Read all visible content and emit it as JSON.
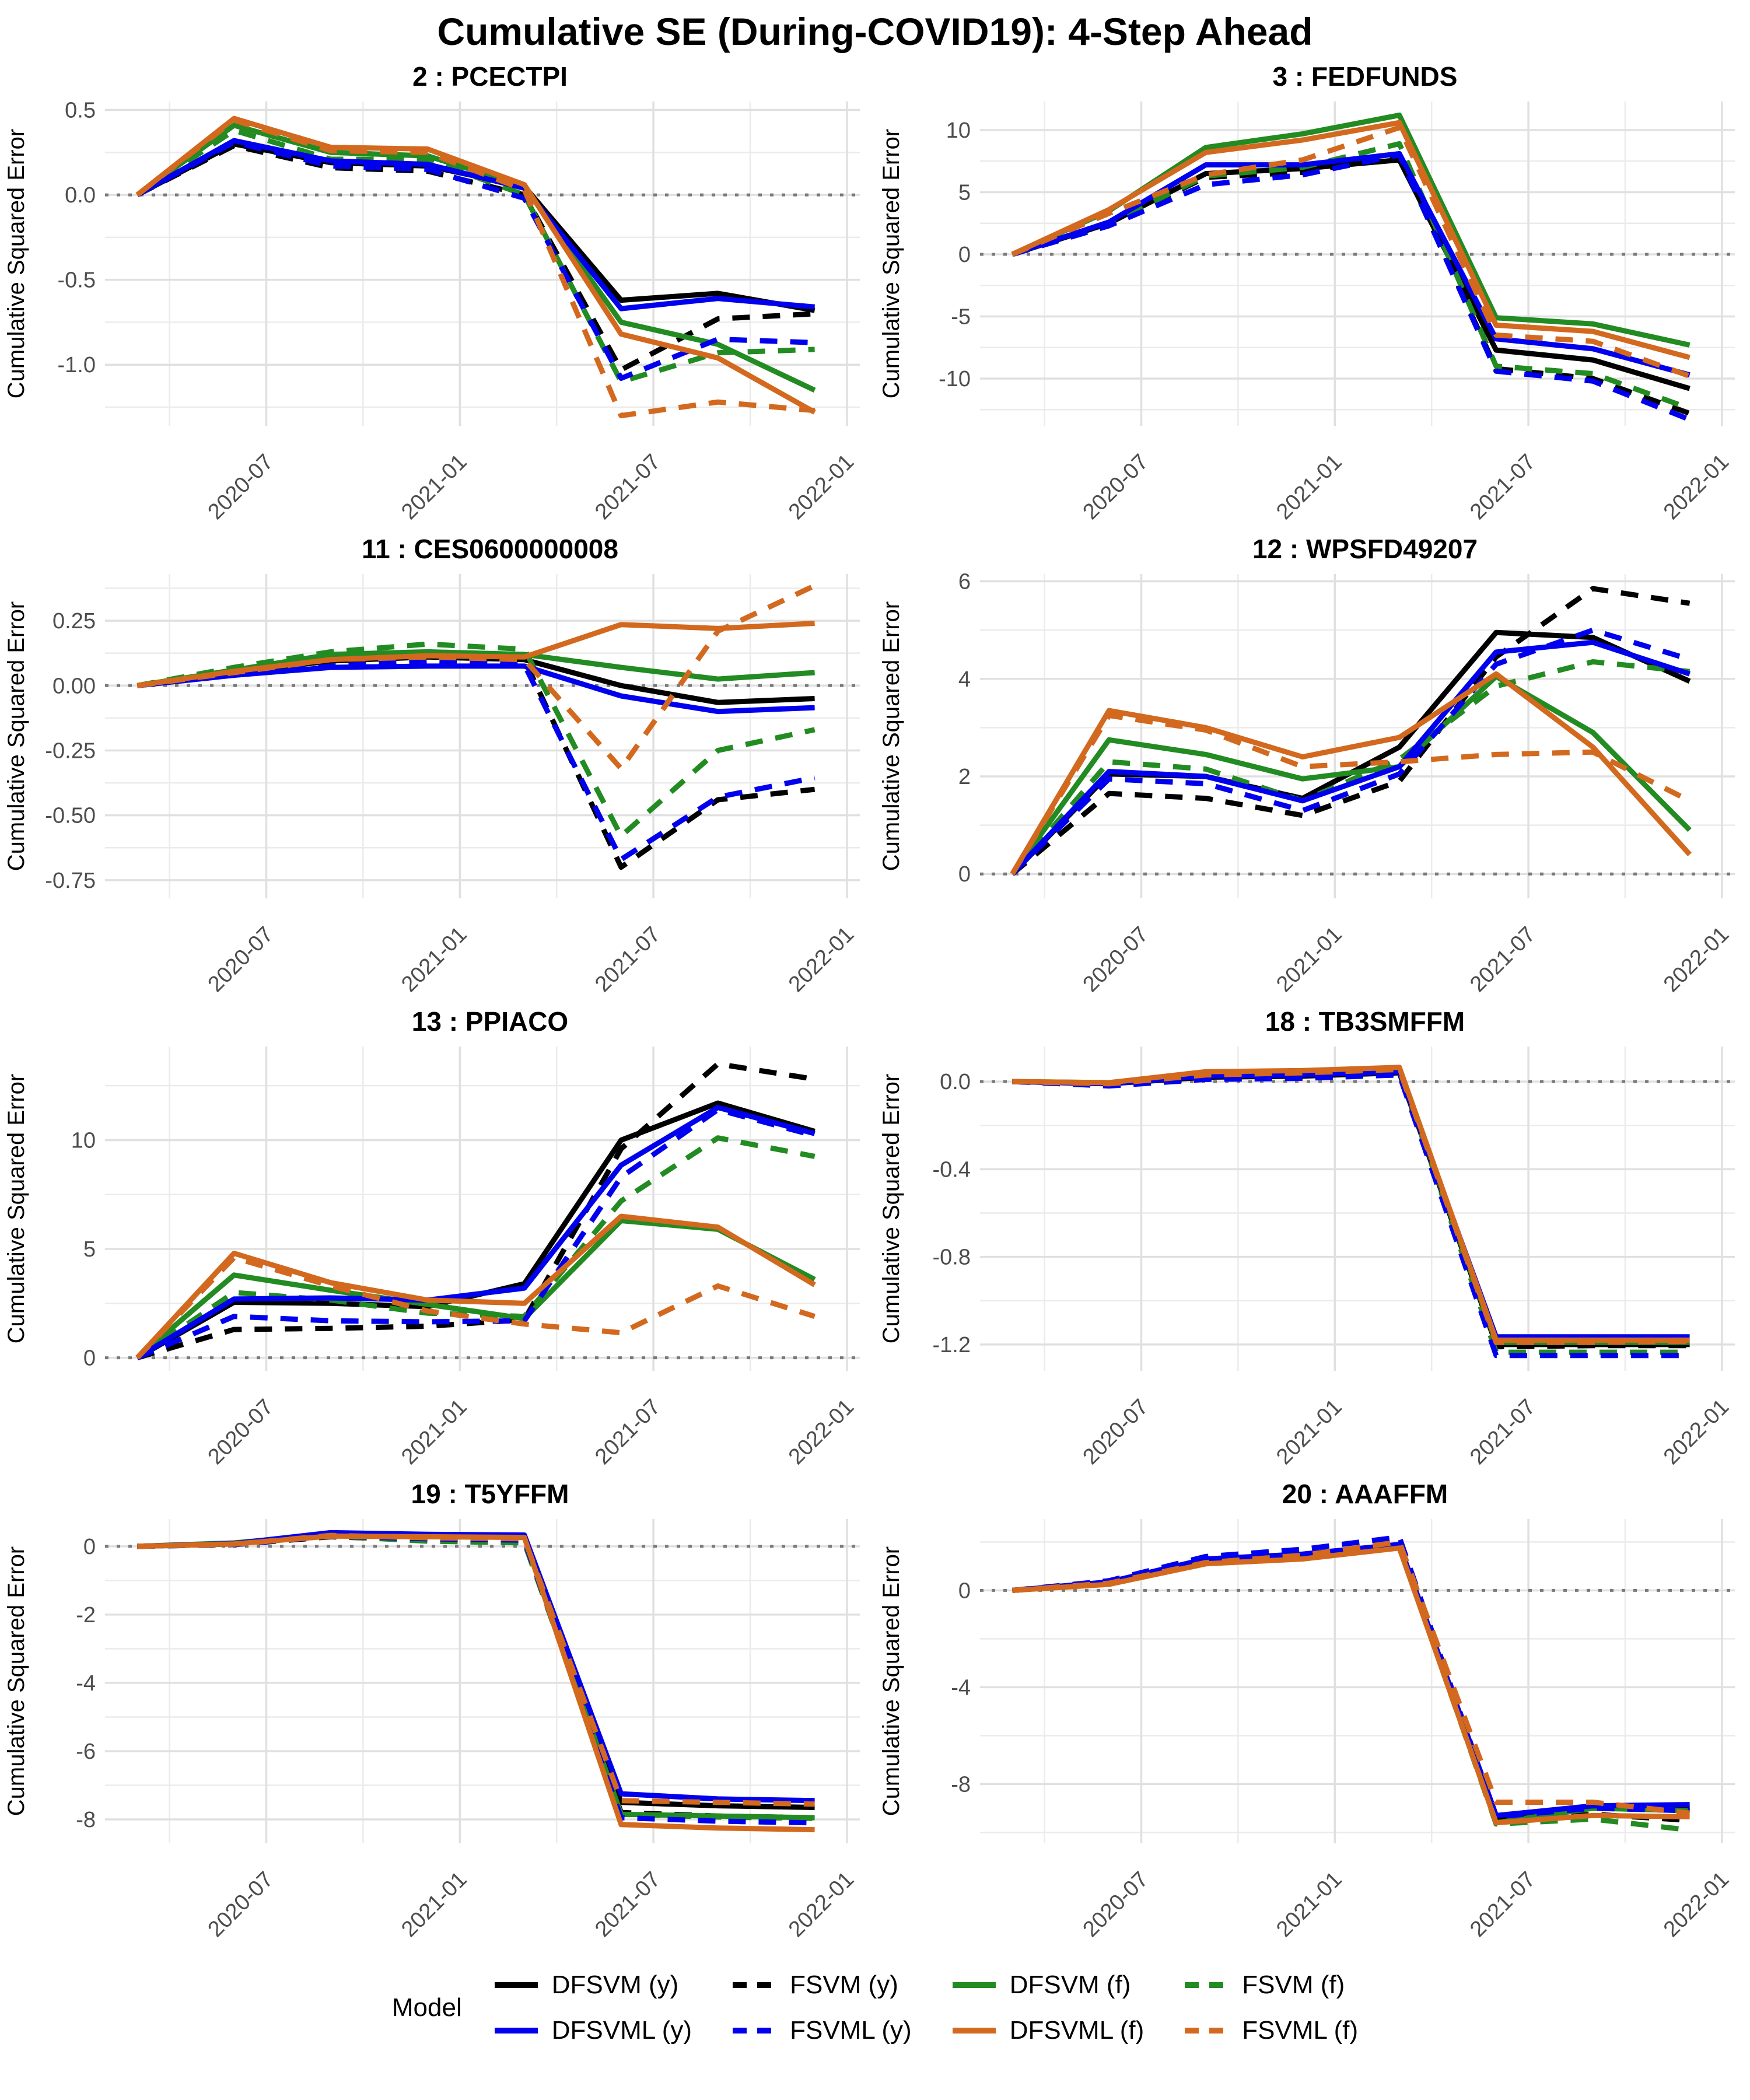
{
  "figure": {
    "title": "Cumulative SE (During-COVID19): 4-Step Ahead"
  },
  "legend": {
    "title": "Model"
  },
  "chart_data": {
    "type": "line",
    "ylabel": "Cumulative Squared Error",
    "x_unit": "months since 2020-03",
    "x_points": [
      0,
      3,
      6,
      9,
      12,
      15,
      18,
      21
    ],
    "x_point_dates": [
      "2020-03",
      "2020-06",
      "2020-09",
      "2020-12",
      "2021-03",
      "2021-06",
      "2021-09",
      "2021-12"
    ],
    "xlim": [
      -1,
      22.4
    ],
    "x_ticks": [
      {
        "pos": 4,
        "label": "2020-07"
      },
      {
        "pos": 10,
        "label": "2021-01"
      },
      {
        "pos": 16,
        "label": "2021-07"
      },
      {
        "pos": 22,
        "label": "2022-01"
      }
    ],
    "x_minor": [
      1,
      7,
      13,
      19
    ],
    "zero_line": true,
    "grid": true,
    "legend_position": "bottom",
    "colors": {
      "black": "#000000",
      "green": "#228B22",
      "blue": "#0000EE",
      "orange": "#D2691E",
      "zero_line": "#7a7a7a",
      "tick_text": "#4d4d4d"
    },
    "models": [
      {
        "label": "DFSVM (y)",
        "color": "#000000",
        "dash": false
      },
      {
        "label": "FSVM (y)",
        "color": "#000000",
        "dash": true
      },
      {
        "label": "DFSVM (f)",
        "color": "#228B22",
        "dash": false
      },
      {
        "label": "FSVM (f)",
        "color": "#228B22",
        "dash": true
      },
      {
        "label": "DFSVML (y)",
        "color": "#0000EE",
        "dash": false
      },
      {
        "label": "FSVML (y)",
        "color": "#0000EE",
        "dash": true
      },
      {
        "label": "DFSVML (f)",
        "color": "#D2691E",
        "dash": false
      },
      {
        "label": "FSVML (f)",
        "color": "#D2691E",
        "dash": true
      }
    ],
    "panels": [
      {
        "title": "2 : PCECTPI",
        "ylim": [
          -1.36,
          0.55
        ],
        "y_ticks": [
          {
            "v": 0.5,
            "label": "0.5"
          },
          {
            "v": 0.0,
            "label": "0.0"
          },
          {
            "v": -0.5,
            "label": "-0.5"
          },
          {
            "v": -1.0,
            "label": "-1.0"
          }
        ],
        "y_minor": [
          0.25,
          -0.25,
          -0.75,
          -1.25
        ],
        "values": [
          [
            0,
            0.3,
            0.19,
            0.17,
            0.05,
            -0.62,
            -0.58,
            -0.68
          ],
          [
            0,
            0.29,
            0.16,
            0.14,
            0.0,
            -1.03,
            -0.73,
            -0.7
          ],
          [
            0,
            0.41,
            0.25,
            0.23,
            0.05,
            -0.75,
            -0.88,
            -1.15
          ],
          [
            0,
            0.38,
            0.21,
            0.21,
            0.0,
            -1.1,
            -0.93,
            -0.91
          ],
          [
            0,
            0.32,
            0.2,
            0.18,
            0.04,
            -0.67,
            -0.61,
            -0.66
          ],
          [
            0,
            0.31,
            0.17,
            0.15,
            -0.02,
            -1.08,
            -0.85,
            -0.87
          ],
          [
            0,
            0.45,
            0.28,
            0.27,
            0.06,
            -0.82,
            -0.96,
            -1.28
          ],
          [
            0,
            0.44,
            0.26,
            0.25,
            0.03,
            -1.3,
            -1.22,
            -1.27
          ]
        ]
      },
      {
        "title": "3 : FEDFUNDS",
        "ylim": [
          -13.8,
          12.3
        ],
        "y_ticks": [
          {
            "v": 10,
            "label": "10"
          },
          {
            "v": 5,
            "label": "5"
          },
          {
            "v": 0,
            "label": "0"
          },
          {
            "v": -5,
            "label": "-5"
          },
          {
            "v": -10,
            "label": "-10"
          }
        ],
        "y_minor": [
          7.5,
          2.5,
          -2.5,
          -7.5,
          -12.5
        ],
        "values": [
          [
            0,
            2.5,
            6.5,
            6.9,
            7.6,
            -7.7,
            -8.5,
            -10.8
          ],
          [
            0,
            2.4,
            6.2,
            6.6,
            7.9,
            -9.2,
            -10.0,
            -12.8
          ],
          [
            0,
            3.5,
            8.6,
            9.7,
            11.2,
            -5.1,
            -5.6,
            -7.3
          ],
          [
            0,
            2.5,
            6.3,
            7.0,
            8.9,
            -9.0,
            -9.6,
            -12.4
          ],
          [
            0,
            2.6,
            7.2,
            7.2,
            8.1,
            -6.8,
            -7.6,
            -9.7
          ],
          [
            0,
            2.3,
            5.6,
            6.4,
            8.0,
            -9.4,
            -10.2,
            -13.3
          ],
          [
            0,
            3.6,
            8.2,
            9.2,
            10.6,
            -5.7,
            -6.2,
            -8.3
          ],
          [
            0,
            3.3,
            6.4,
            7.6,
            10.2,
            -6.5,
            -7.0,
            -9.8
          ]
        ]
      },
      {
        "title": "11 : CES0600000008",
        "ylim": [
          -0.82,
          0.43
        ],
        "y_ticks": [
          {
            "v": 0.25,
            "label": "0.25"
          },
          {
            "v": 0.0,
            "label": "0.00"
          },
          {
            "v": -0.25,
            "label": "-0.25"
          },
          {
            "v": -0.5,
            "label": "-0.50"
          },
          {
            "v": -0.75,
            "label": "-0.75"
          }
        ],
        "y_minor": [
          0.375,
          0.125,
          -0.125,
          -0.375,
          -0.625
        ],
        "values": [
          [
            0,
            0.05,
            0.095,
            0.11,
            0.1,
            0.0,
            -0.065,
            -0.05
          ],
          [
            0,
            0.05,
            0.1,
            0.11,
            0.1,
            -0.7,
            -0.44,
            -0.4
          ],
          [
            0,
            0.06,
            0.12,
            0.13,
            0.12,
            0.07,
            0.025,
            0.05
          ],
          [
            0,
            0.07,
            0.13,
            0.16,
            0.14,
            -0.58,
            -0.25,
            -0.17
          ],
          [
            0,
            0.04,
            0.07,
            0.075,
            0.075,
            -0.04,
            -0.1,
            -0.085
          ],
          [
            0,
            0.04,
            0.075,
            0.095,
            0.08,
            -0.67,
            -0.43,
            -0.355
          ],
          [
            0,
            0.055,
            0.1,
            0.115,
            0.11,
            0.235,
            0.22,
            0.24
          ],
          [
            0,
            0.05,
            0.1,
            0.11,
            0.1,
            -0.32,
            0.21,
            0.385
          ]
        ]
      },
      {
        "title": "12 : WPSFD49207",
        "ylim": [
          -0.5,
          6.15
        ],
        "y_ticks": [
          {
            "v": 6,
            "label": "6"
          },
          {
            "v": 4,
            "label": "4"
          },
          {
            "v": 2,
            "label": "2"
          },
          {
            "v": 0,
            "label": "0"
          }
        ],
        "y_minor": [
          5,
          3,
          1
        ],
        "values": [
          [
            0,
            2.05,
            2.0,
            1.55,
            2.6,
            4.95,
            4.85,
            3.95
          ],
          [
            0,
            1.65,
            1.55,
            1.2,
            1.9,
            4.45,
            5.85,
            5.55
          ],
          [
            0,
            2.75,
            2.45,
            1.95,
            2.2,
            4.05,
            2.9,
            0.9
          ],
          [
            0,
            2.3,
            2.15,
            1.5,
            2.35,
            3.85,
            4.35,
            4.15
          ],
          [
            0,
            2.1,
            2.0,
            1.5,
            2.2,
            4.55,
            4.75,
            4.1
          ],
          [
            0,
            1.95,
            1.85,
            1.3,
            2.05,
            4.3,
            5.0,
            4.4
          ],
          [
            0,
            3.35,
            3.0,
            2.4,
            2.8,
            4.1,
            2.6,
            0.4
          ],
          [
            0,
            3.25,
            2.95,
            2.2,
            2.3,
            2.45,
            2.5,
            1.5
          ]
        ]
      },
      {
        "title": "13 : PPIACO",
        "ylim": [
          -0.6,
          14.3
        ],
        "y_ticks": [
          {
            "v": 10,
            "label": "10"
          },
          {
            "v": 5,
            "label": "5"
          },
          {
            "v": 0,
            "label": "0"
          }
        ],
        "y_minor": [
          12.5,
          7.5,
          2.5
        ],
        "values": [
          [
            0,
            2.55,
            2.5,
            2.35,
            3.4,
            10.0,
            11.7,
            10.4
          ],
          [
            0,
            1.3,
            1.35,
            1.45,
            1.75,
            9.6,
            13.5,
            12.8
          ],
          [
            0,
            3.8,
            3.1,
            2.45,
            1.8,
            6.3,
            5.9,
            3.6
          ],
          [
            0,
            3.0,
            2.65,
            2.05,
            1.9,
            7.2,
            10.1,
            9.25
          ],
          [
            0,
            2.7,
            2.75,
            2.65,
            3.2,
            8.85,
            11.5,
            10.3
          ],
          [
            0,
            1.9,
            1.7,
            1.65,
            1.7,
            8.3,
            11.4,
            10.2
          ],
          [
            0,
            4.8,
            3.45,
            2.65,
            2.5,
            6.5,
            6.0,
            3.35
          ],
          [
            0,
            4.6,
            3.3,
            2.15,
            1.55,
            1.15,
            3.3,
            1.9
          ]
        ]
      },
      {
        "title": "18 : TB3SMFFM",
        "ylim": [
          -1.32,
          0.16
        ],
        "y_ticks": [
          {
            "v": 0.0,
            "label": "0.0"
          },
          {
            "v": -0.4,
            "label": "-0.4"
          },
          {
            "v": -0.8,
            "label": "-0.8"
          },
          {
            "v": -1.2,
            "label": "-1.2"
          }
        ],
        "y_minor": [
          -0.2,
          -0.6,
          -1.0
        ],
        "values": [
          [
            0,
            -0.01,
            0.02,
            0.025,
            0.04,
            -1.2,
            -1.2,
            -1.2
          ],
          [
            0,
            -0.015,
            0.015,
            0.02,
            0.035,
            -1.21,
            -1.205,
            -1.205
          ],
          [
            0,
            -0.005,
            0.04,
            0.045,
            0.05,
            -1.19,
            -1.19,
            -1.19
          ],
          [
            0,
            -0.012,
            0.025,
            0.035,
            0.05,
            -1.235,
            -1.235,
            -1.235
          ],
          [
            0,
            -0.01,
            0.025,
            0.03,
            0.045,
            -1.165,
            -1.165,
            -1.165
          ],
          [
            0,
            -0.02,
            0.01,
            0.015,
            0.03,
            -1.25,
            -1.25,
            -1.25
          ],
          [
            0,
            -0.005,
            0.045,
            0.05,
            0.065,
            -1.18,
            -1.18,
            -1.18
          ],
          [
            0,
            -0.01,
            0.03,
            0.04,
            0.055,
            -1.19,
            -1.19,
            -1.185
          ]
        ]
      },
      {
        "title": "19 : T5YFFM",
        "ylim": [
          -8.7,
          0.8
        ],
        "y_ticks": [
          {
            "v": 0,
            "label": "0"
          },
          {
            "v": -2,
            "label": "-2"
          },
          {
            "v": -4,
            "label": "-4"
          },
          {
            "v": -6,
            "label": "-6"
          },
          {
            "v": -8,
            "label": "-8"
          }
        ],
        "y_minor": [
          -1,
          -3,
          -5,
          -7
        ],
        "values": [
          [
            0,
            0.07,
            0.33,
            0.3,
            0.3,
            -7.5,
            -7.6,
            -7.65
          ],
          [
            0,
            0.05,
            0.28,
            0.18,
            0.12,
            -7.8,
            -7.9,
            -7.95
          ],
          [
            0,
            0.1,
            0.35,
            0.32,
            0.3,
            -7.85,
            -7.9,
            -7.95
          ],
          [
            0,
            0.06,
            0.3,
            0.15,
            0.1,
            -7.85,
            -7.93,
            -7.97
          ],
          [
            0,
            0.08,
            0.4,
            0.35,
            0.33,
            -7.25,
            -7.4,
            -7.45
          ],
          [
            0,
            0.05,
            0.3,
            0.22,
            0.18,
            -7.95,
            -8.05,
            -8.1
          ],
          [
            0,
            0.07,
            0.3,
            0.28,
            0.26,
            -8.15,
            -8.25,
            -8.3
          ],
          [
            0,
            0.06,
            0.32,
            0.25,
            0.22,
            -7.45,
            -7.5,
            -7.55
          ]
        ]
      },
      {
        "title": "20 : AAAFFM",
        "ylim": [
          -10.45,
          2.95
        ],
        "y_ticks": [
          {
            "v": 0,
            "label": "0"
          },
          {
            "v": -4,
            "label": "-4"
          },
          {
            "v": -8,
            "label": "-8"
          }
        ],
        "y_minor": [
          2,
          -2,
          -6,
          -10
        ],
        "values": [
          [
            0,
            0.3,
            1.2,
            1.4,
            1.8,
            -9.5,
            -9.0,
            -9.0
          ],
          [
            0,
            0.3,
            1.2,
            1.4,
            1.85,
            -9.55,
            -9.25,
            -9.5
          ],
          [
            0,
            0.3,
            1.2,
            1.35,
            1.8,
            -9.6,
            -9.0,
            -9.1
          ],
          [
            0,
            0.3,
            1.15,
            1.35,
            1.8,
            -9.65,
            -9.45,
            -9.9
          ],
          [
            0,
            0.35,
            1.3,
            1.5,
            1.9,
            -9.3,
            -8.9,
            -8.85
          ],
          [
            0,
            0.4,
            1.4,
            1.7,
            2.2,
            -9.35,
            -9.0,
            -9.1
          ],
          [
            0,
            0.25,
            1.1,
            1.3,
            1.75,
            -9.6,
            -9.3,
            -9.35
          ],
          [
            0,
            0.3,
            1.15,
            1.45,
            2.0,
            -8.75,
            -8.75,
            -9.2
          ]
        ]
      }
    ]
  }
}
